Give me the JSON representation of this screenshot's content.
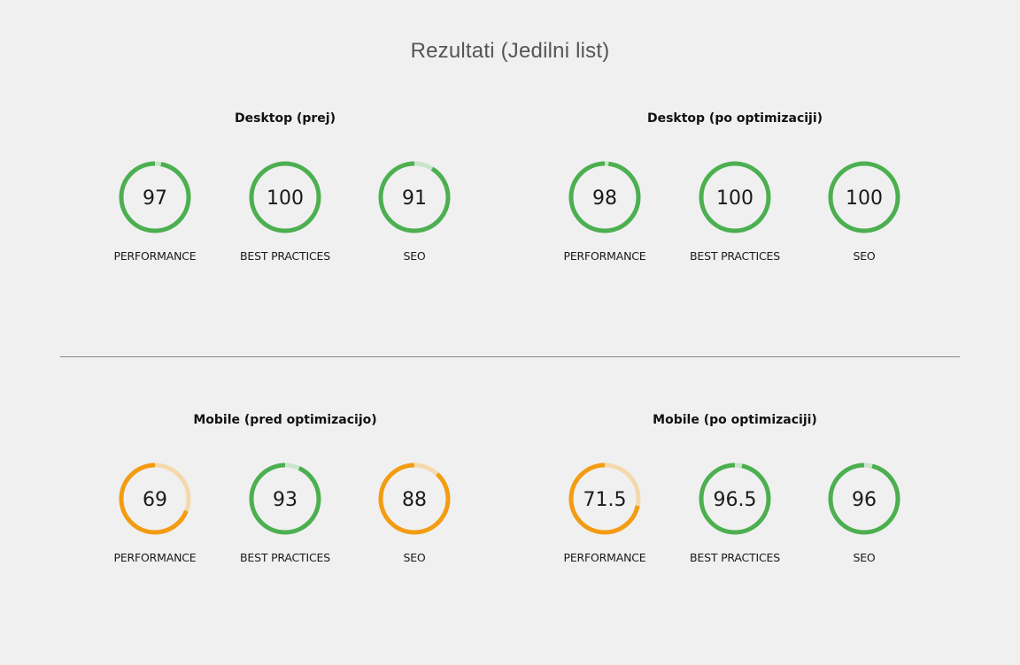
{
  "title": "Rezultati (Jedilni list)",
  "colors": {
    "good": "#4caf50",
    "good_track": "#c8e6c9",
    "average": "#f39c12",
    "average_track": "#f5d9ad",
    "background": "#f0f0f0"
  },
  "groups": [
    {
      "title": "Desktop (prej)",
      "gauges": [
        {
          "label": "PERFORMANCE",
          "score": "97",
          "value": 97,
          "status": "good"
        },
        {
          "label": "BEST PRACTICES",
          "score": "100",
          "value": 100,
          "status": "good"
        },
        {
          "label": "SEO",
          "score": "91",
          "value": 91,
          "status": "good"
        }
      ]
    },
    {
      "title": "Desktop (po optimizaciji)",
      "gauges": [
        {
          "label": "PERFORMANCE",
          "score": "98",
          "value": 98,
          "status": "good"
        },
        {
          "label": "BEST PRACTICES",
          "score": "100",
          "value": 100,
          "status": "good"
        },
        {
          "label": "SEO",
          "score": "100",
          "value": 100,
          "status": "good"
        }
      ]
    },
    {
      "title": "Mobile (pred optimizacijo)",
      "gauges": [
        {
          "label": "PERFORMANCE",
          "score": "69",
          "value": 69,
          "status": "average"
        },
        {
          "label": "BEST PRACTICES",
          "score": "93",
          "value": 93,
          "status": "good"
        },
        {
          "label": "SEO",
          "score": "88",
          "value": 88,
          "status": "average"
        }
      ]
    },
    {
      "title": "Mobile (po optimizaciji)",
      "gauges": [
        {
          "label": "PERFORMANCE",
          "score": "71.5",
          "value": 71.5,
          "status": "average"
        },
        {
          "label": "BEST PRACTICES",
          "score": "96.5",
          "value": 96.5,
          "status": "good"
        },
        {
          "label": "SEO",
          "score": "96",
          "value": 96,
          "status": "good"
        }
      ]
    }
  ]
}
